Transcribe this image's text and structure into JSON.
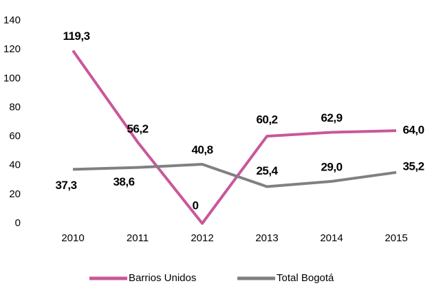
{
  "chart_data": {
    "type": "line",
    "categories": [
      "2010",
      "2011",
      "2012",
      "2013",
      "2014",
      "2015"
    ],
    "series": [
      {
        "name": "Barrios Unidos",
        "color": "#c9579a",
        "values": [
          119.3,
          56.2,
          0,
          60.2,
          62.9,
          64.0
        ],
        "value_labels": [
          "119,3",
          "56,2",
          "0",
          "60,2",
          "62,9",
          "64,0"
        ]
      },
      {
        "name": "Total Bogotá",
        "color": "#808080",
        "values": [
          37.3,
          38.6,
          40.8,
          25.4,
          29.0,
          35.2
        ],
        "value_labels": [
          "37,3",
          "38,6",
          "40,8",
          "25,4",
          "29,0",
          "35,2"
        ]
      }
    ],
    "ylim": [
      0,
      140
    ],
    "yticks": [
      0,
      20,
      40,
      60,
      80,
      100,
      120,
      140
    ],
    "grid": false,
    "legend": "bottom"
  }
}
